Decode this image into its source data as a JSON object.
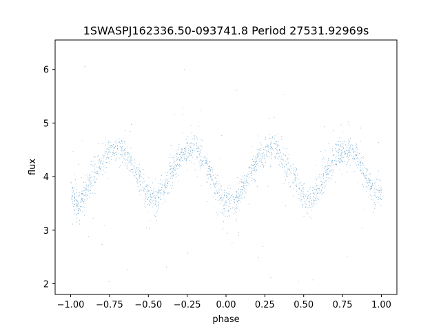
{
  "chart_data": {
    "type": "scatter",
    "title": "1SWASPJ162336.50-093741.8 Period 27531.92969s",
    "xlabel": "phase",
    "ylabel": "flux",
    "xlim": [
      -1.1,
      1.1
    ],
    "ylim": [
      1.8,
      6.55
    ],
    "x_ticks": [
      -1.0,
      -0.75,
      -0.5,
      -0.25,
      0.0,
      0.25,
      0.5,
      0.75,
      1.0
    ],
    "x_tick_labels": [
      "−1.00",
      "−0.75",
      "−0.50",
      "−0.25",
      "0.00",
      "0.25",
      "0.50",
      "0.75",
      "1.00"
    ],
    "y_ticks": [
      2,
      3,
      4,
      5,
      6
    ],
    "y_tick_labels": [
      "2",
      "3",
      "4",
      "5",
      "6"
    ],
    "grid": false,
    "point_color": "#1f77b4",
    "series": [
      {
        "phase_range": [
          -1.0,
          1.0
        ],
        "mean_flux_curve": {
          "phase": [
            -1.0,
            -0.95,
            -0.9,
            -0.85,
            -0.8,
            -0.75,
            -0.7,
            -0.65,
            -0.6,
            -0.55,
            -0.5,
            -0.45,
            -0.4,
            -0.35,
            -0.3,
            -0.25,
            -0.2,
            -0.15,
            -0.1,
            -0.05,
            0.0,
            0.05,
            0.1,
            0.15,
            0.2,
            0.25,
            0.3,
            0.35,
            0.4,
            0.45,
            0.5,
            0.55,
            0.6,
            0.65,
            0.7,
            0.75,
            0.8,
            0.85,
            0.9,
            0.95,
            1.0
          ],
          "flux": [
            3.75,
            3.45,
            3.75,
            4.05,
            4.3,
            4.45,
            4.55,
            4.45,
            4.2,
            3.9,
            3.65,
            3.55,
            3.8,
            4.1,
            4.35,
            4.5,
            4.5,
            4.35,
            4.05,
            3.7,
            3.5,
            3.45,
            3.75,
            4.05,
            4.3,
            4.45,
            4.55,
            4.45,
            4.2,
            3.9,
            3.65,
            3.55,
            3.8,
            4.1,
            4.35,
            4.5,
            4.5,
            4.35,
            4.05,
            3.7,
            3.75
          ]
        },
        "scatter_half_width": 0.3,
        "outlier_range": [
          2.0,
          6.3
        ],
        "approx_point_count": 14000
      }
    ]
  }
}
